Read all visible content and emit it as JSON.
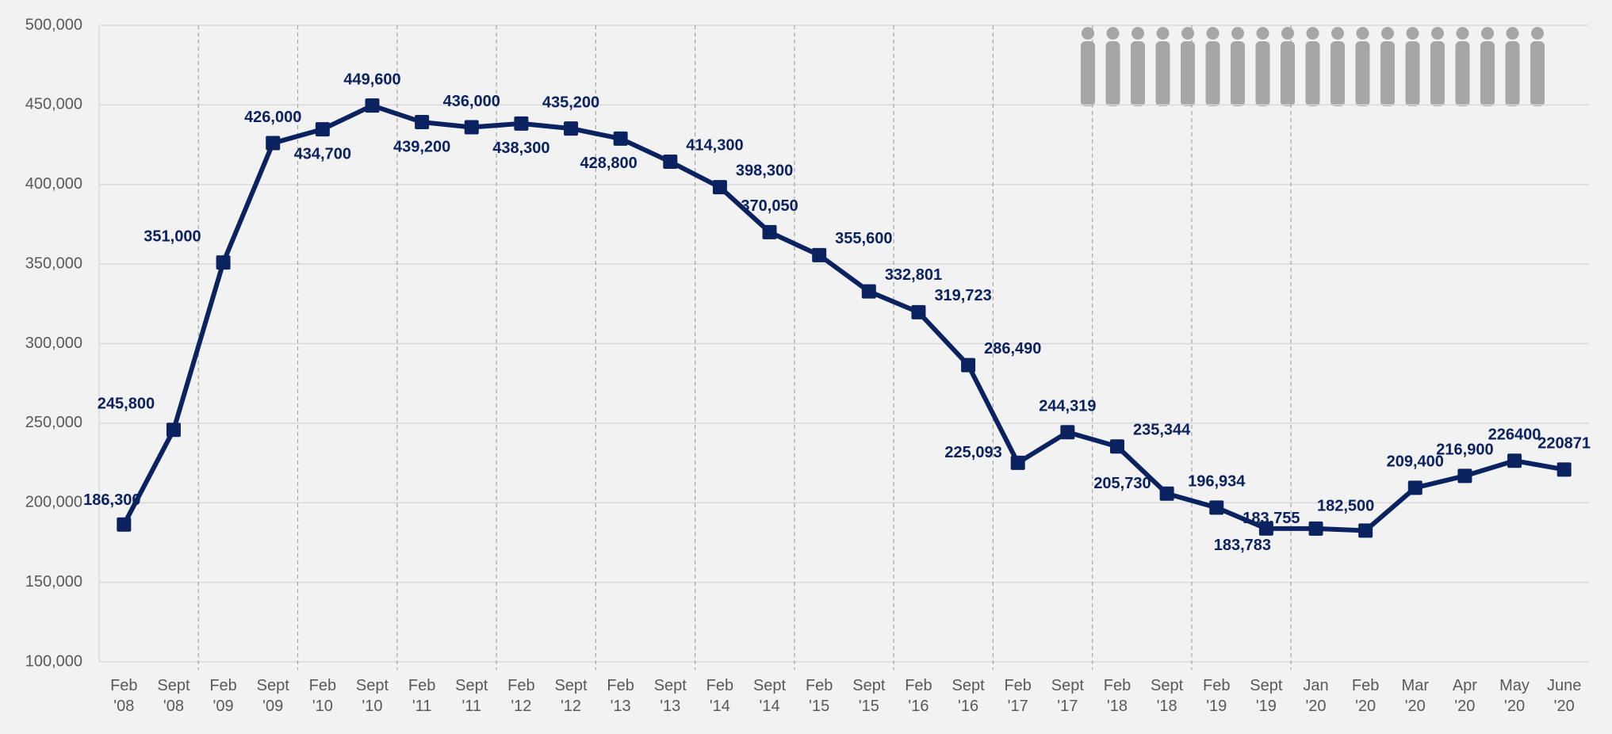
{
  "chart_data": {
    "type": "line",
    "categories": [
      "Feb '08",
      "Sept '08",
      "Feb '09",
      "Sept '09",
      "Feb '10",
      "Sept '10",
      "Feb '11",
      "Sept '11",
      "Feb '12",
      "Sept '12",
      "Feb '13",
      "Sept '13",
      "Feb '14",
      "Sept '14",
      "Feb '15",
      "Sept '15",
      "Feb '16",
      "Sept '16",
      "Feb '17",
      "Sept '17",
      "Feb '18",
      "Sept '18",
      "Feb '19",
      "Sept '19",
      "Jan '20",
      "Feb '20",
      "Mar '20",
      "Apr '20",
      "May '20",
      "June '20"
    ],
    "values": [
      186300,
      245800,
      351000,
      426000,
      434700,
      449600,
      439200,
      436000,
      438300,
      435200,
      428800,
      414300,
      398300,
      370050,
      355600,
      332801,
      319723,
      286490,
      225093,
      244319,
      235344,
      205730,
      196934,
      183783,
      183755,
      182500,
      209400,
      216900,
      226400,
      220871
    ],
    "value_labels": [
      "186,300",
      "245,800",
      "351,000",
      "426,000",
      "434,700",
      "449,600",
      "439,200",
      "436,000",
      "438,300",
      "435,200",
      "428,800",
      "414,300",
      "398,300",
      "370,050",
      "355,600",
      "332,801",
      "319,723",
      "286,490",
      "225,093",
      "244,319",
      "235,344",
      "205,730",
      "196,934",
      "183,783",
      "183,755",
      "182,500",
      "209,400",
      "216,900",
      "226400",
      "220871"
    ],
    "color": "#0b2260",
    "ylim": [
      100000,
      500000
    ],
    "yticks": [
      {
        "value": 100000,
        "label": "100,000"
      },
      {
        "value": 150000,
        "label": "150,000"
      },
      {
        "value": 200000,
        "label": "200,000"
      },
      {
        "value": 250000,
        "label": "250,000"
      },
      {
        "value": 300000,
        "label": "300,000"
      },
      {
        "value": 350000,
        "label": "350,000"
      },
      {
        "value": 400000,
        "label": "400,000"
      },
      {
        "value": 450000,
        "label": "450,000"
      },
      {
        "value": 500000,
        "label": "500,000"
      }
    ],
    "grid": true
  }
}
